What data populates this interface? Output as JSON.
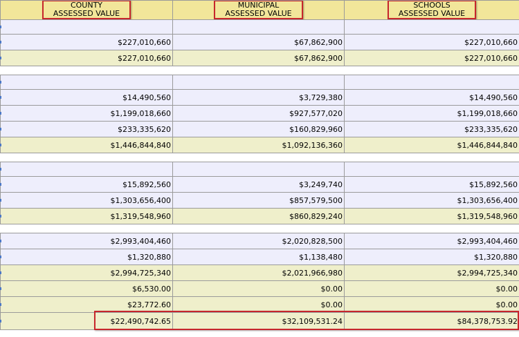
{
  "headers": [
    {
      "line1": "COUNTY",
      "line2": "ASSESSED VALUE"
    },
    {
      "line1": "MUNICIPAL",
      "line2": "ASSESSED VALUE"
    },
    {
      "line1": "SCHOOLS",
      "line2": "ASSESSED VALUE"
    }
  ],
  "rows": [
    {
      "kind": "lav-empty",
      "cells": [
        "",
        "",
        ""
      ]
    },
    {
      "kind": "lav",
      "cells": [
        "$227,010,660",
        "$67,862,900",
        "$227,010,660"
      ]
    },
    {
      "kind": "tan",
      "cells": [
        "$227,010,660",
        "$67,862,900",
        "$227,010,660"
      ]
    },
    {
      "kind": "gap",
      "cells": [
        "",
        "",
        ""
      ]
    },
    {
      "kind": "lav-empty",
      "cells": [
        "",
        "",
        ""
      ]
    },
    {
      "kind": "lav",
      "cells": [
        "$14,490,560",
        "$3,729,380",
        "$14,490,560"
      ]
    },
    {
      "kind": "lav",
      "cells": [
        "$1,199,018,660",
        "$927,577,020",
        "$1,199,018,660"
      ]
    },
    {
      "kind": "lav",
      "cells": [
        "$233,335,620",
        "$160,829,960",
        "$233,335,620"
      ]
    },
    {
      "kind": "tan",
      "cells": [
        "$1,446,844,840",
        "$1,092,136,360",
        "$1,446,844,840"
      ]
    },
    {
      "kind": "gap",
      "cells": [
        "",
        "",
        ""
      ]
    },
    {
      "kind": "lav-empty",
      "cells": [
        "",
        "",
        ""
      ]
    },
    {
      "kind": "lav",
      "cells": [
        "$15,892,560",
        "$3,249,740",
        "$15,892,560"
      ]
    },
    {
      "kind": "lav",
      "cells": [
        "$1,303,656,400",
        "$857,579,500",
        "$1,303,656,400"
      ]
    },
    {
      "kind": "tan",
      "cells": [
        "$1,319,548,960",
        "$860,829,240",
        "$1,319,548,960"
      ]
    },
    {
      "kind": "gap",
      "cells": [
        "",
        "",
        ""
      ]
    },
    {
      "kind": "lav",
      "cells": [
        "$2,993,404,460",
        "$2,020,828,500",
        "$2,993,404,460"
      ]
    },
    {
      "kind": "lav",
      "cells": [
        "$1,320,880",
        "$1,138,480",
        "$1,320,880"
      ]
    },
    {
      "kind": "tan",
      "cells": [
        "$2,994,725,340",
        "$2,021,966,980",
        "$2,994,725,340"
      ]
    },
    {
      "kind": "tan",
      "cells": [
        "$6,530.00",
        "$0.00",
        "$0.00"
      ]
    },
    {
      "kind": "tan",
      "cells": [
        "$23,772.60",
        "$0.00",
        "$0.00"
      ]
    },
    {
      "kind": "tan final",
      "cells": [
        "$22,490,742.65",
        "$32,109,531.24",
        "$84,378,753.92"
      ]
    }
  ],
  "colors": {
    "header_bg": "#f2e69a",
    "lavender_row": "#eeeefc",
    "tan_row": "#efefcb",
    "highlight_border": "#c7262c"
  }
}
